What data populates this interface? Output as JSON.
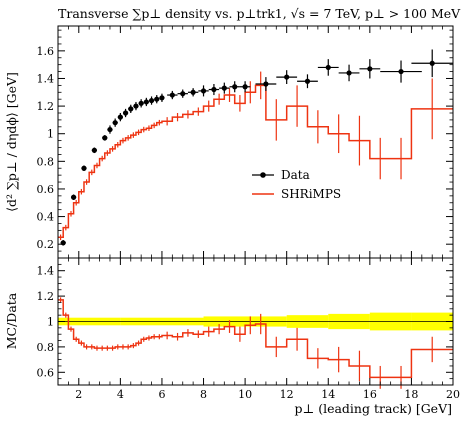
{
  "chart_data": [
    {
      "type": "scatter",
      "panel": "main",
      "title": "Transverse ∑p⊥ density vs. p⊥trk1, √s = 7 TeV, p⊥ > 100 MeV",
      "ylabel": "⟨d² ∑p⊥ / dηdϕ⟩ [GeV]",
      "xlim": [
        1,
        20
      ],
      "ylim": [
        0.1,
        1.78
      ],
      "x_ticks": [
        2,
        4,
        6,
        8,
        10,
        12,
        14,
        16,
        18,
        20
      ],
      "y_ticks": [
        0.2,
        0.4,
        0.6,
        0.8,
        1,
        1.2,
        1.4,
        1.6
      ],
      "y_tick_labels": [
        "0.2",
        "0.4",
        "0.6",
        "0.8",
        "1",
        "1.2",
        "1.4",
        "1.6"
      ],
      "legend_position": "center-right",
      "series": [
        {
          "name": "Data",
          "color": "#000000",
          "style": "points-with-errors",
          "x": [
            1.25,
            1.75,
            2.25,
            2.75,
            3.25,
            3.5,
            3.75,
            4.0,
            4.25,
            4.5,
            4.75,
            5.0,
            5.25,
            5.5,
            5.75,
            6.0,
            6.5,
            7.0,
            7.5,
            8.0,
            8.5,
            9.0,
            9.5,
            10.0,
            11.0,
            12.0,
            13.0,
            14.0,
            15.0,
            16.0,
            17.5,
            19.0
          ],
          "y": [
            0.21,
            0.54,
            0.75,
            0.88,
            0.97,
            1.03,
            1.08,
            1.12,
            1.15,
            1.18,
            1.2,
            1.22,
            1.23,
            1.24,
            1.25,
            1.26,
            1.28,
            1.29,
            1.3,
            1.31,
            1.32,
            1.33,
            1.34,
            1.34,
            1.36,
            1.41,
            1.38,
            1.48,
            1.44,
            1.47,
            1.45,
            1.51
          ],
          "xerr": [
            0.125,
            0.125,
            0.125,
            0.125,
            0.125,
            0.125,
            0.125,
            0.125,
            0.125,
            0.125,
            0.125,
            0.125,
            0.125,
            0.125,
            0.125,
            0.125,
            0.25,
            0.25,
            0.25,
            0.25,
            0.25,
            0.25,
            0.25,
            0.25,
            0.5,
            0.5,
            0.5,
            0.5,
            0.5,
            0.5,
            1.0,
            1.0
          ],
          "yerr": [
            0.02,
            0.02,
            0.02,
            0.02,
            0.02,
            0.03,
            0.03,
            0.03,
            0.03,
            0.03,
            0.03,
            0.03,
            0.03,
            0.03,
            0.03,
            0.03,
            0.03,
            0.03,
            0.03,
            0.04,
            0.04,
            0.04,
            0.04,
            0.04,
            0.05,
            0.05,
            0.05,
            0.06,
            0.06,
            0.07,
            0.08,
            0.1
          ]
        },
        {
          "name": "SHRiMPS",
          "color": "#ee3311",
          "style": "histogram-with-errors",
          "bin_edges": [
            1.0,
            1.25,
            1.5,
            1.75,
            2.0,
            2.25,
            2.5,
            2.75,
            3.0,
            3.25,
            3.5,
            3.75,
            4.0,
            4.25,
            4.5,
            4.75,
            5.0,
            5.25,
            5.5,
            5.75,
            6.0,
            6.5,
            7.0,
            7.5,
            8.0,
            8.5,
            9.0,
            9.5,
            10.0,
            10.5,
            11.0,
            12.0,
            13.0,
            14.0,
            15.0,
            16.0,
            17.0,
            18.0,
            20.0
          ],
          "values": [
            0.25,
            0.32,
            0.42,
            0.5,
            0.58,
            0.65,
            0.72,
            0.77,
            0.82,
            0.86,
            0.89,
            0.92,
            0.95,
            0.97,
            0.99,
            1.01,
            1.03,
            1.04,
            1.06,
            1.08,
            1.09,
            1.12,
            1.14,
            1.16,
            1.2,
            1.25,
            1.28,
            1.22,
            1.3,
            1.35,
            1.1,
            1.2,
            1.05,
            1.0,
            0.95,
            0.82,
            0.82,
            1.18
          ],
          "yerr": [
            0.02,
            0.02,
            0.02,
            0.02,
            0.02,
            0.02,
            0.02,
            0.02,
            0.02,
            0.02,
            0.02,
            0.02,
            0.02,
            0.02,
            0.02,
            0.02,
            0.02,
            0.02,
            0.02,
            0.02,
            0.03,
            0.03,
            0.03,
            0.03,
            0.04,
            0.04,
            0.05,
            0.06,
            0.08,
            0.1,
            0.15,
            0.15,
            0.12,
            0.14,
            0.18,
            0.15,
            0.15,
            0.22
          ]
        }
      ]
    },
    {
      "type": "line",
      "panel": "ratio",
      "ylabel": "MC/Data",
      "xlabel": "p⊥ (leading track) [GeV]",
      "xlim": [
        1,
        20
      ],
      "ylim": [
        0.5,
        1.5
      ],
      "x_ticks": [
        2,
        4,
        6,
        8,
        10,
        12,
        14,
        16,
        18,
        20
      ],
      "x_tick_labels": [
        "2",
        "4",
        "6",
        "8",
        "10",
        "12",
        "14",
        "16",
        "18",
        "20"
      ],
      "y_ticks": [
        0.6,
        0.8,
        1,
        1.2,
        1.4
      ],
      "y_tick_labels": [
        "0.6",
        "0.8",
        "1",
        "1.2",
        "1.4"
      ],
      "band": {
        "color": "#ffff00",
        "x": [
          1.0,
          4.0,
          8.0,
          12.0,
          14.0,
          16.0,
          18.0,
          20.0
        ],
        "lo": [
          0.97,
          0.97,
          0.96,
          0.95,
          0.94,
          0.93,
          0.93,
          0.93
        ],
        "hi": [
          1.03,
          1.03,
          1.04,
          1.05,
          1.06,
          1.07,
          1.07,
          1.07
        ]
      },
      "series": [
        {
          "name": "SHRiMPS / Data",
          "color": "#ee3311",
          "style": "histogram-with-errors",
          "bin_edges": [
            1.0,
            1.25,
            1.5,
            1.75,
            2.0,
            2.25,
            2.5,
            2.75,
            3.0,
            3.25,
            3.5,
            3.75,
            4.0,
            4.25,
            4.5,
            4.75,
            5.0,
            5.25,
            5.5,
            5.75,
            6.0,
            6.5,
            7.0,
            7.5,
            8.0,
            8.5,
            9.0,
            9.5,
            10.0,
            10.5,
            11.0,
            12.0,
            13.0,
            14.0,
            15.0,
            16.0,
            17.0,
            18.0,
            20.0
          ],
          "values": [
            1.17,
            1.05,
            0.94,
            0.86,
            0.83,
            0.8,
            0.8,
            0.79,
            0.79,
            0.79,
            0.79,
            0.8,
            0.8,
            0.8,
            0.81,
            0.83,
            0.86,
            0.87,
            0.88,
            0.88,
            0.89,
            0.88,
            0.91,
            0.9,
            0.92,
            0.94,
            0.96,
            0.9,
            0.97,
            0.98,
            0.8,
            0.86,
            0.71,
            0.7,
            0.65,
            0.56,
            0.56,
            0.78
          ],
          "yerr": [
            0.02,
            0.02,
            0.02,
            0.02,
            0.02,
            0.02,
            0.02,
            0.02,
            0.02,
            0.02,
            0.02,
            0.02,
            0.02,
            0.02,
            0.02,
            0.02,
            0.02,
            0.02,
            0.02,
            0.02,
            0.03,
            0.03,
            0.03,
            0.03,
            0.04,
            0.04,
            0.05,
            0.06,
            0.07,
            0.08,
            0.08,
            0.09,
            0.08,
            0.1,
            0.12,
            0.09,
            0.09,
            0.1
          ]
        }
      ]
    }
  ]
}
